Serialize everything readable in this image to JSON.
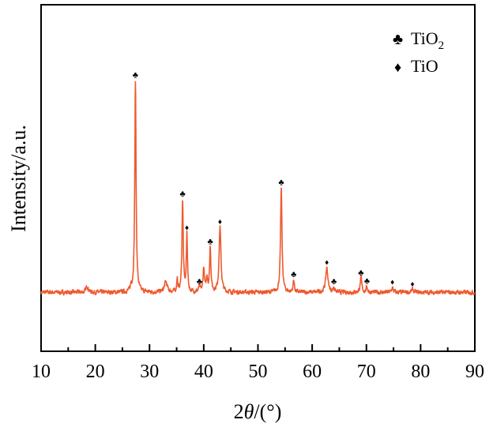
{
  "chart_data": {
    "type": "line",
    "title": "",
    "xlabel_prefix": "2",
    "xlabel_theta": "θ",
    "xlabel_suffix": "/(°)",
    "ylabel": "Intensity/a.u.",
    "xlim": [
      10,
      90
    ],
    "ylim": [
      0,
      100
    ],
    "x_ticks": [
      10,
      20,
      30,
      40,
      50,
      60,
      70,
      80,
      90
    ],
    "x_tick_labels": [
      "10",
      "20",
      "30",
      "40",
      "50",
      "60",
      "70",
      "80",
      "90"
    ],
    "y_ticks_shown": false,
    "grid": false,
    "legend_position": "top-right",
    "legend": [
      {
        "symbol": "♣",
        "label": "TiO",
        "sub": "2",
        "phase": "TiO2"
      },
      {
        "symbol": "♦",
        "label": "TiO",
        "sub": "",
        "phase": "TiO"
      }
    ],
    "series_color": "#ee5a2f",
    "baseline": 17,
    "peaks": [
      {
        "x": 18.5,
        "y": 18.8,
        "w": 0.25,
        "marker": null
      },
      {
        "x": 26.6,
        "y": 18.5,
        "w": 0.12,
        "marker": null
      },
      {
        "x": 27.4,
        "y": 78.0,
        "w": 0.14,
        "marker": "club"
      },
      {
        "x": 33.0,
        "y": 20.0,
        "w": 0.3,
        "marker": null
      },
      {
        "x": 35.1,
        "y": 21.0,
        "w": 0.1,
        "marker": null
      },
      {
        "x": 36.1,
        "y": 43.7,
        "w": 0.14,
        "marker": "club"
      },
      {
        "x": 36.9,
        "y": 34.0,
        "w": 0.12,
        "marker": "diamond"
      },
      {
        "x": 39.2,
        "y": 18.5,
        "w": 0.15,
        "marker": "club"
      },
      {
        "x": 40.0,
        "y": 24.0,
        "w": 0.15,
        "marker": null
      },
      {
        "x": 40.6,
        "y": 21.0,
        "w": 0.15,
        "marker": null
      },
      {
        "x": 41.2,
        "y": 30.0,
        "w": 0.14,
        "marker": "club"
      },
      {
        "x": 43.0,
        "y": 35.8,
        "w": 0.2,
        "marker": "diamond"
      },
      {
        "x": 54.3,
        "y": 47.0,
        "w": 0.16,
        "marker": "club"
      },
      {
        "x": 56.6,
        "y": 20.5,
        "w": 0.14,
        "marker": "club"
      },
      {
        "x": 62.7,
        "y": 24.0,
        "w": 0.25,
        "marker": "diamond"
      },
      {
        "x": 64.0,
        "y": 18.4,
        "w": 0.15,
        "marker": "club"
      },
      {
        "x": 69.0,
        "y": 21.0,
        "w": 0.18,
        "marker": "club"
      },
      {
        "x": 70.1,
        "y": 18.6,
        "w": 0.15,
        "marker": "club"
      },
      {
        "x": 74.8,
        "y": 18.3,
        "w": 0.18,
        "marker": "diamond"
      },
      {
        "x": 78.5,
        "y": 17.8,
        "w": 0.2,
        "marker": "diamond"
      }
    ]
  }
}
